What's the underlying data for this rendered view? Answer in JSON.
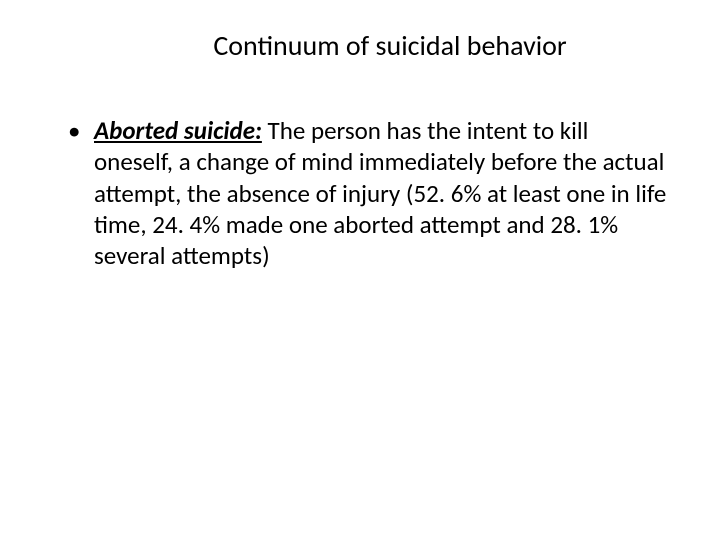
{
  "slide": {
    "title": "Continuum of suicidal behavior",
    "bullets": [
      {
        "term": "Aborted suicide:",
        "body": " The person has the intent to kill oneself, a change of mind immediately before the actual attempt, the absence of injury (52. 6% at least one in life time, 24. 4% made one aborted attempt and  28. 1% several attempts)"
      }
    ]
  },
  "colors": {
    "background": "#ffffff",
    "text": "#000000"
  },
  "typography": {
    "title_fontsize": 28,
    "body_fontsize": 25,
    "font_family": "Calibri"
  }
}
